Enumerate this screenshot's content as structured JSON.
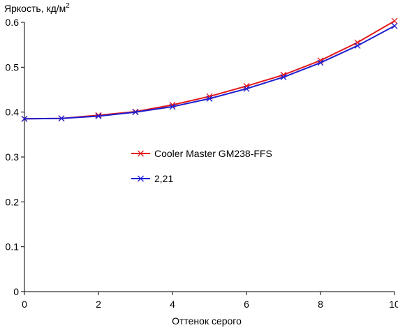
{
  "chart_data": {
    "type": "line",
    "ylabel": "Яркость, кд/м",
    "ylabel_sup": "2",
    "xlabel": "Оттенок серого",
    "xlim": [
      0,
      10
    ],
    "ylim": [
      0,
      0.6
    ],
    "x_ticks": [
      "0",
      "2",
      "4",
      "6",
      "8",
      "10"
    ],
    "y_ticks": [
      "0",
      "0.1",
      "0.2",
      "0.3",
      "0.4",
      "0.5",
      "0.6"
    ],
    "legend_position": "center-left",
    "x": [
      0,
      1,
      2,
      3,
      4,
      5,
      6,
      7,
      8,
      9,
      10
    ],
    "series": [
      {
        "name": "Cooler Master GM238-FFS",
        "color": "#e31a1c",
        "marker": "x",
        "values": [
          0.385,
          0.386,
          0.393,
          0.401,
          0.416,
          0.435,
          0.458,
          0.483,
          0.515,
          0.555,
          0.603
        ]
      },
      {
        "name": "2,21",
        "color": "#1f1fd1",
        "marker": "x",
        "values": [
          0.385,
          0.386,
          0.391,
          0.4,
          0.412,
          0.43,
          0.452,
          0.478,
          0.51,
          0.548,
          0.592
        ]
      }
    ]
  }
}
